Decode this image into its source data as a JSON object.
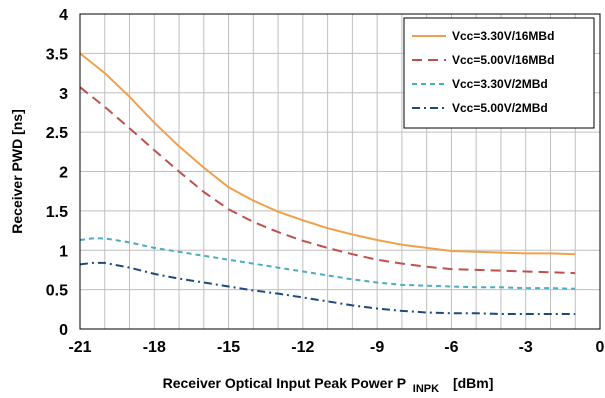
{
  "chart_data": {
    "type": "line",
    "title": "",
    "xlabel_main": "Receiver Optical Input Peak Power P",
    "xlabel_sub": "INPK",
    "xlabel_unit": "[dBm]",
    "ylabel": "Receiver PWD [ns]",
    "xlim": [
      -21,
      0
    ],
    "ylim": [
      0,
      4
    ],
    "xticks": [
      -21,
      -18,
      -15,
      -12,
      -9,
      -6,
      -3,
      0
    ],
    "xtick_labels": [
      "-21",
      "-18",
      "-15",
      "-12",
      "-9",
      "-6",
      "-3",
      "0"
    ],
    "yticks": [
      0,
      0.5,
      1,
      1.5,
      2,
      2.5,
      3,
      3.5,
      4
    ],
    "ytick_labels": [
      "0",
      "0.5",
      "1",
      "1.5",
      "2",
      "2.5",
      "3",
      "3.5",
      "4"
    ],
    "grid": true,
    "legend_position": "top-right",
    "series": [
      {
        "name": "Vcc=3.30V/16MBd",
        "color": "#f0a04b",
        "dash": "solid",
        "x": [
          -21,
          -20,
          -19,
          -18,
          -17,
          -16,
          -15,
          -14,
          -13,
          -12,
          -11,
          -10,
          -9,
          -8,
          -7,
          -6,
          -5,
          -4,
          -3,
          -2,
          -1
        ],
        "y": [
          3.5,
          3.25,
          2.95,
          2.62,
          2.32,
          2.05,
          1.8,
          1.63,
          1.49,
          1.38,
          1.28,
          1.2,
          1.13,
          1.07,
          1.03,
          0.99,
          0.98,
          0.97,
          0.96,
          0.96,
          0.95
        ]
      },
      {
        "name": "Vcc=5.00V/16MBd",
        "color": "#c0504d",
        "dash": "dash",
        "x": [
          -21,
          -20,
          -19,
          -18,
          -17,
          -16,
          -15,
          -14,
          -13,
          -12,
          -11,
          -10,
          -9,
          -8,
          -7,
          -6,
          -5,
          -4,
          -3,
          -2,
          -1
        ],
        "y": [
          3.07,
          2.82,
          2.55,
          2.27,
          2.0,
          1.74,
          1.52,
          1.36,
          1.23,
          1.12,
          1.03,
          0.95,
          0.88,
          0.83,
          0.79,
          0.76,
          0.75,
          0.74,
          0.73,
          0.72,
          0.71
        ]
      },
      {
        "name": "Vcc=3.30V/2MBd",
        "color": "#4bacc6",
        "dash": "shortdash",
        "x": [
          -21,
          -20.5,
          -20,
          -19,
          -18,
          -17,
          -16,
          -15,
          -14,
          -13,
          -12,
          -11,
          -10,
          -9,
          -8,
          -7,
          -6,
          -5,
          -4,
          -3,
          -2,
          -1
        ],
        "y": [
          1.13,
          1.15,
          1.15,
          1.1,
          1.03,
          0.98,
          0.93,
          0.88,
          0.83,
          0.78,
          0.73,
          0.68,
          0.63,
          0.59,
          0.56,
          0.55,
          0.54,
          0.53,
          0.53,
          0.52,
          0.52,
          0.51
        ]
      },
      {
        "name": "Vcc=5.00V/2MBd",
        "color": "#1f497d",
        "dash": "dashdot",
        "x": [
          -21,
          -20.5,
          -20,
          -19,
          -18,
          -17,
          -16,
          -15,
          -14,
          -13,
          -12,
          -11,
          -10,
          -9,
          -8,
          -7,
          -6,
          -5,
          -4,
          -3,
          -2,
          -1
        ],
        "y": [
          0.82,
          0.84,
          0.84,
          0.78,
          0.7,
          0.64,
          0.59,
          0.54,
          0.49,
          0.45,
          0.4,
          0.35,
          0.3,
          0.26,
          0.23,
          0.21,
          0.2,
          0.2,
          0.19,
          0.19,
          0.19,
          0.19
        ]
      }
    ]
  }
}
